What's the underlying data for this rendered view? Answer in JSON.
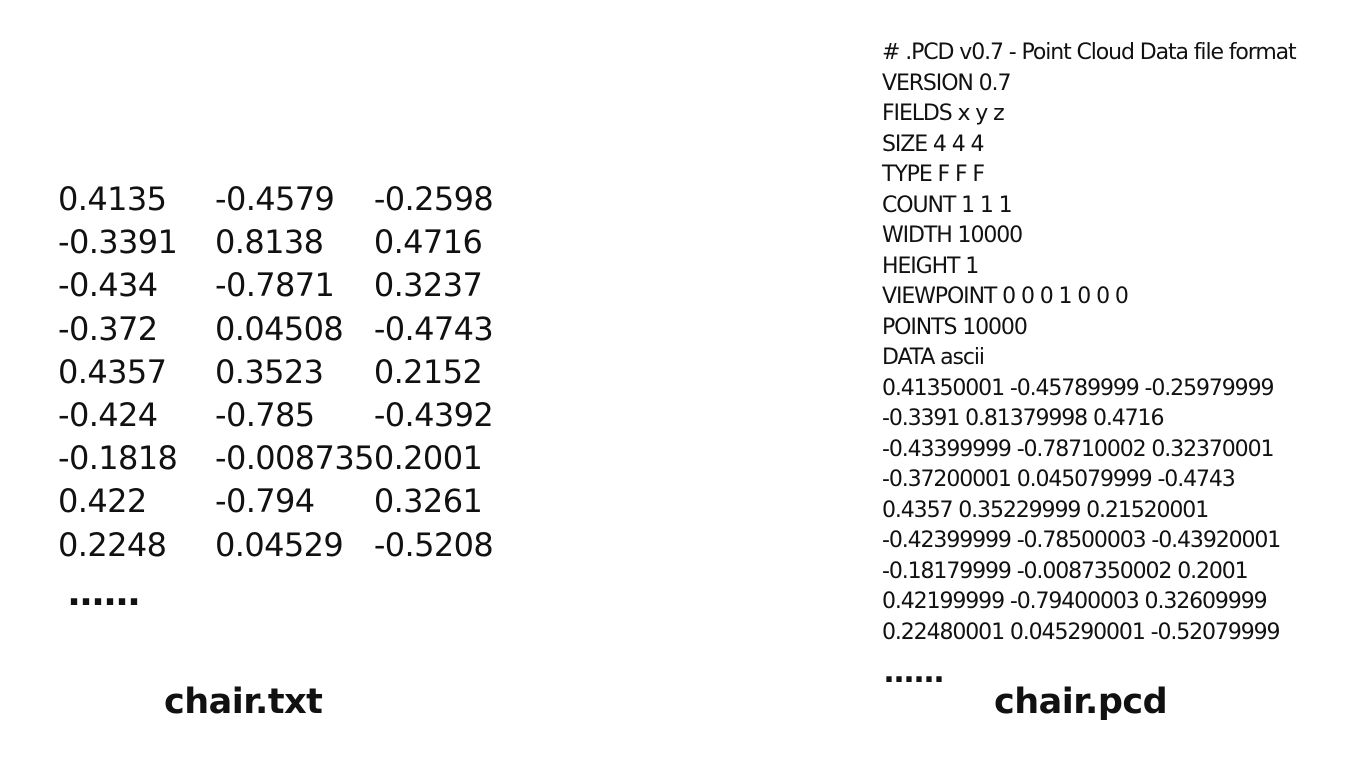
{
  "txt_file": {
    "rows": [
      [
        "0.4135",
        "-0.4579",
        "-0.2598"
      ],
      [
        "-0.3391",
        "0.8138",
        "0.4716"
      ],
      [
        "-0.434",
        "-0.7871",
        "0.3237"
      ],
      [
        "-0.372",
        "0.04508",
        "-0.4743"
      ],
      [
        "0.4357",
        "0.3523",
        "0.2152"
      ],
      [
        "-0.424",
        "-0.785",
        "-0.4392"
      ],
      [
        "-0.1818",
        "-0.008735",
        "0.2001"
      ],
      [
        "0.422",
        "-0.794",
        "0.3261"
      ],
      [
        "0.2248",
        "0.04529",
        "-0.5208"
      ]
    ],
    "ellipsis": "……",
    "caption": "chair.txt"
  },
  "pcd_file": {
    "lines": [
      "# .PCD v0.7 - Point Cloud Data file format",
      "VERSION 0.7",
      "FIELDS x y z",
      "SIZE 4 4 4",
      "TYPE F F F",
      "COUNT 1 1 1",
      "WIDTH 10000",
      "HEIGHT 1",
      "VIEWPOINT 0 0 0 1 0 0 0",
      "POINTS 10000",
      "DATA ascii",
      "0.41350001 -0.45789999 -0.25979999",
      "-0.3391 0.81379998 0.4716",
      "-0.43399999 -0.78710002 0.32370001",
      "-0.37200001 0.045079999 -0.4743",
      "0.4357 0.35229999 0.21520001",
      "-0.42399999 -0.78500003 -0.43920001",
      "-0.18179999 -0.0087350002 0.2001",
      "0.42199999 -0.79400003 0.32609999",
      "0.22480001 0.045290001 -0.52079999"
    ],
    "ellipsis": "……",
    "caption": "chair.pcd"
  }
}
